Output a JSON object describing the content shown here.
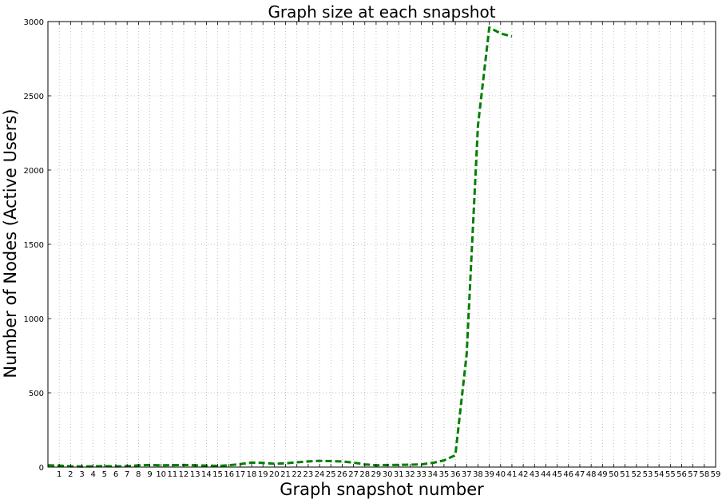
{
  "chart_data": {
    "type": "line",
    "title": "Graph size at each snapshot",
    "xlabel": "Graph snapshot number",
    "ylabel": "Number of Nodes (Active Users)",
    "xlim": [
      0,
      59
    ],
    "ylim": [
      0,
      3000
    ],
    "x_ticks": [
      1,
      2,
      3,
      4,
      5,
      6,
      7,
      8,
      9,
      10,
      11,
      12,
      13,
      14,
      15,
      16,
      17,
      18,
      19,
      20,
      21,
      22,
      23,
      24,
      25,
      26,
      27,
      28,
      29,
      30,
      31,
      32,
      33,
      34,
      35,
      36,
      37,
      38,
      39,
      40,
      41,
      42,
      43,
      44,
      45,
      46,
      47,
      48,
      49,
      50,
      51,
      52,
      53,
      54,
      55,
      56,
      57,
      58,
      59
    ],
    "y_ticks": [
      0,
      500,
      1000,
      1500,
      2000,
      2500,
      3000
    ],
    "grid": true,
    "series": [
      {
        "color": "#007f00",
        "line_style": "dashed",
        "x": [
          0,
          1,
          2,
          3,
          4,
          5,
          6,
          7,
          8,
          9,
          10,
          11,
          12,
          13,
          14,
          15,
          16,
          17,
          18,
          19,
          20,
          21,
          22,
          23,
          24,
          25,
          26,
          27,
          28,
          29,
          30,
          31,
          32,
          33,
          34,
          35,
          36,
          37,
          38,
          39,
          40,
          41
        ],
        "values": [
          12,
          10,
          5,
          4,
          5,
          6,
          5,
          6,
          12,
          14,
          12,
          13,
          14,
          12,
          10,
          8,
          12,
          20,
          30,
          28,
          22,
          25,
          32,
          38,
          42,
          40,
          38,
          30,
          18,
          12,
          14,
          15,
          16,
          18,
          28,
          45,
          80,
          760,
          2300,
          2960,
          2920,
          2900
        ]
      }
    ]
  }
}
